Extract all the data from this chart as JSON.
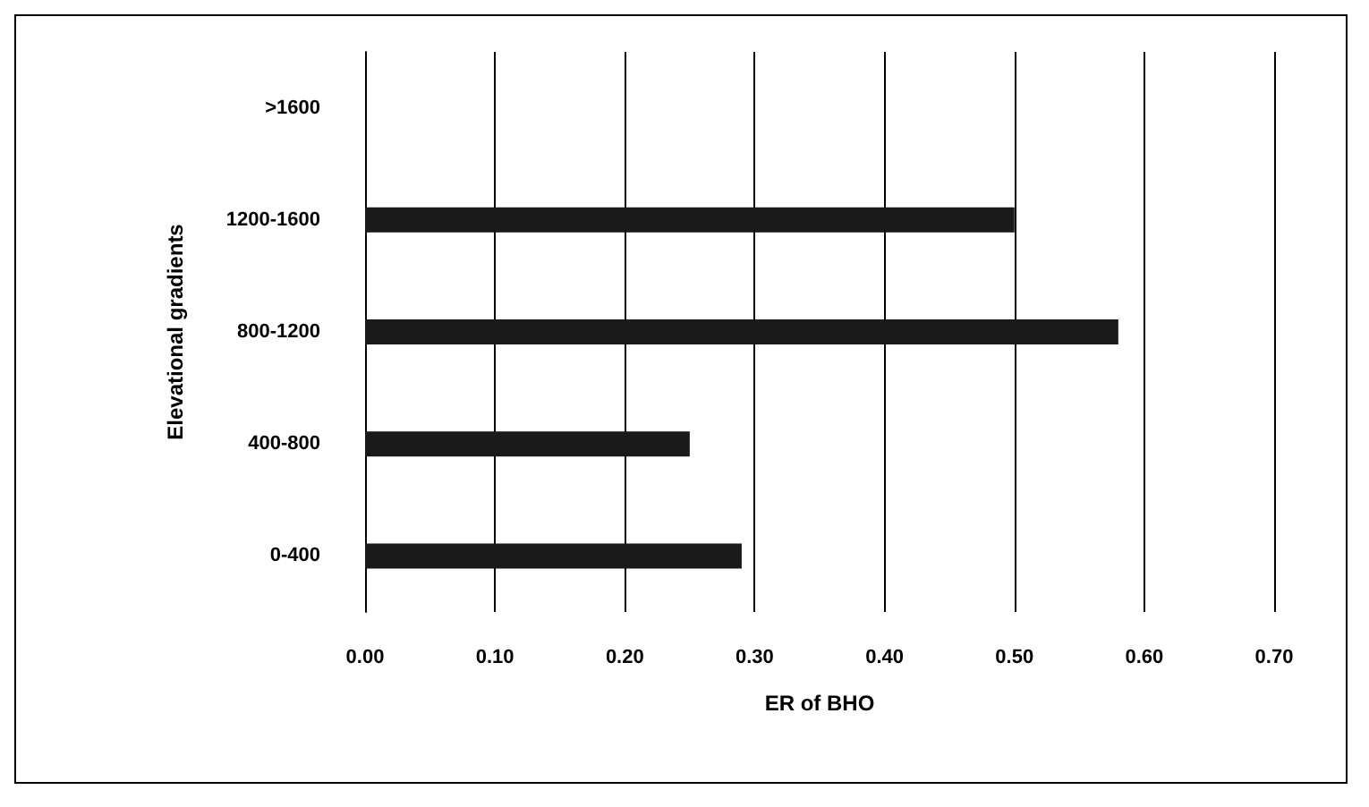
{
  "chart_data": {
    "type": "bar",
    "orientation": "horizontal",
    "xlabel": "ER of BHO",
    "ylabel": "Elevational gradients",
    "categories": [
      ">1600",
      "1200-1600",
      "800-1200",
      "400-800",
      "0-400"
    ],
    "values": [
      0,
      0.5,
      0.58,
      0.25,
      0.29
    ],
    "color": "#1a1a1a",
    "xlim": [
      0,
      0.7
    ],
    "xticks": [
      {
        "value": 0,
        "label": "0.00"
      },
      {
        "value": 0.1,
        "label": "0.10"
      },
      {
        "value": 0.2,
        "label": "0.20"
      },
      {
        "value": 0.3,
        "label": "0.30"
      },
      {
        "value": 0.4,
        "label": "0.40"
      },
      {
        "value": 0.5,
        "label": "0.50"
      },
      {
        "value": 0.6,
        "label": "0.60"
      },
      {
        "value": 0.7,
        "label": "0.70"
      }
    ],
    "grid": "x"
  }
}
